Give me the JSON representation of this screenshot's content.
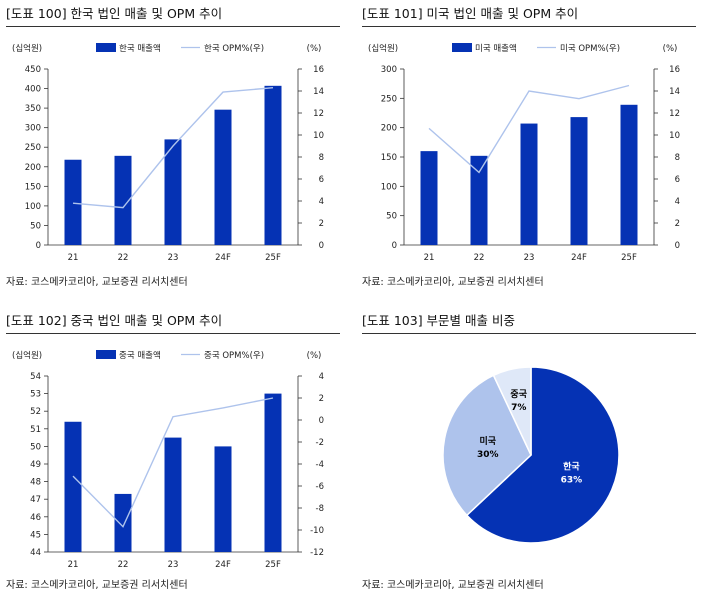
{
  "colors": {
    "bar": "#0532B4",
    "line": "#AEC3EC",
    "pie_korea": "#0532B4",
    "pie_us": "#AEC3EC",
    "pie_china": "#DFE8F8"
  },
  "panels": [
    {
      "title": "[도표 100] 한국 법인 매출 및 OPM 추이",
      "source": "자료: 코스메카코리아, 교보증권 리서치센터"
    },
    {
      "title": "[도표 101] 미국 법인 매출 및 OPM 추이",
      "source": "자료: 코스메카코리아, 교보증권 리서치센터"
    },
    {
      "title": "[도표 102] 중국 법인 매출 및 OPM 추이",
      "source": "자료: 코스메카코리아, 교보증권 리서치센터"
    },
    {
      "title": "[도표 103] 부문별 매출 비중",
      "source": "자료: 코스메카코리아, 교보증권 리서치센터"
    }
  ],
  "chart_data": [
    {
      "type": "bar",
      "title": "[도표 100] 한국 법인 매출 및 OPM 추이",
      "categories": [
        "21",
        "22",
        "23",
        "24F",
        "25F"
      ],
      "series": [
        {
          "name": "한국 매출액",
          "type": "bar",
          "axis": "left",
          "values": [
            218,
            228,
            270,
            346,
            407
          ]
        },
        {
          "name": "한국 OPM%(우)",
          "type": "line",
          "axis": "right",
          "values": [
            3.8,
            3.4,
            9.0,
            13.9,
            14.3
          ]
        }
      ],
      "ylabel": "(십억원)",
      "y2label": "(%)",
      "ylim": [
        0,
        450
      ],
      "ytick_step": 50,
      "y2lim": [
        0,
        16
      ],
      "y2tick_step": 2
    },
    {
      "type": "bar",
      "title": "[도표 101] 미국 법인 매출 및 OPM 추이",
      "categories": [
        "21",
        "22",
        "23",
        "24F",
        "25F"
      ],
      "series": [
        {
          "name": "미국 매출액",
          "type": "bar",
          "axis": "left",
          "values": [
            160,
            152,
            207,
            218,
            239
          ]
        },
        {
          "name": "미국 OPM%(우)",
          "type": "line",
          "axis": "right",
          "values": [
            10.6,
            6.6,
            14.0,
            13.3,
            14.5
          ]
        }
      ],
      "ylabel": "(십억원)",
      "y2label": "(%)",
      "ylim": [
        0,
        300
      ],
      "ytick_step": 50,
      "y2lim": [
        0,
        16
      ],
      "y2tick_step": 2
    },
    {
      "type": "bar",
      "title": "[도표 102] 중국 법인 매출 및 OPM 추이",
      "categories": [
        "21",
        "22",
        "23",
        "24F",
        "25F"
      ],
      "series": [
        {
          "name": "중국 매출액",
          "type": "bar",
          "axis": "left",
          "values": [
            51.4,
            47.3,
            50.5,
            50.0,
            53.0
          ]
        },
        {
          "name": "중국 OPM%(우)",
          "type": "line",
          "axis": "right",
          "values": [
            -5.1,
            -9.7,
            0.3,
            1.1,
            2.0
          ]
        }
      ],
      "ylabel": "(십억원)",
      "y2label": "(%)",
      "ylim": [
        44,
        54
      ],
      "ytick_step": 1,
      "y2lim": [
        -12,
        4
      ],
      "y2tick_step": 2
    },
    {
      "type": "pie",
      "title": "[도표 103] 부문별 매출 비중",
      "labels": [
        "한국",
        "미국",
        "중국"
      ],
      "values": [
        63,
        30,
        7
      ],
      "value_labels": [
        "63%",
        "30%",
        "7%"
      ]
    }
  ]
}
